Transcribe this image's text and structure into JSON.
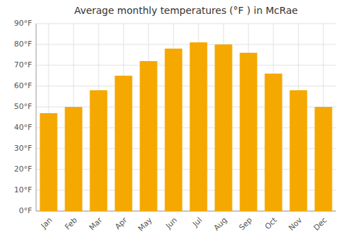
{
  "chart_data": {
    "type": "bar",
    "title": "Average monthly temperatures (°F ) in McRae",
    "categories": [
      "Jan",
      "Feb",
      "Mar",
      "Apr",
      "May",
      "Jun",
      "Jul",
      "Aug",
      "Sep",
      "Oct",
      "Nov",
      "Dec"
    ],
    "values": [
      47,
      50,
      58,
      65,
      72,
      78,
      81,
      80,
      76,
      66,
      58,
      50
    ],
    "color": "#F5A800",
    "ylim": [
      0,
      90
    ],
    "yticks": [
      {
        "value": 0,
        "label": "0°F"
      },
      {
        "value": 10,
        "label": "10°F"
      },
      {
        "value": 20,
        "label": "20°F"
      },
      {
        "value": 30,
        "label": "30°F"
      },
      {
        "value": 40,
        "label": "40°F"
      },
      {
        "value": 50,
        "label": "50°F"
      },
      {
        "value": 60,
        "label": "60°F"
      },
      {
        "value": 70,
        "label": "70°F"
      },
      {
        "value": 80,
        "label": "80°F"
      },
      {
        "value": 90,
        "label": "90°F"
      }
    ],
    "grid": true
  }
}
